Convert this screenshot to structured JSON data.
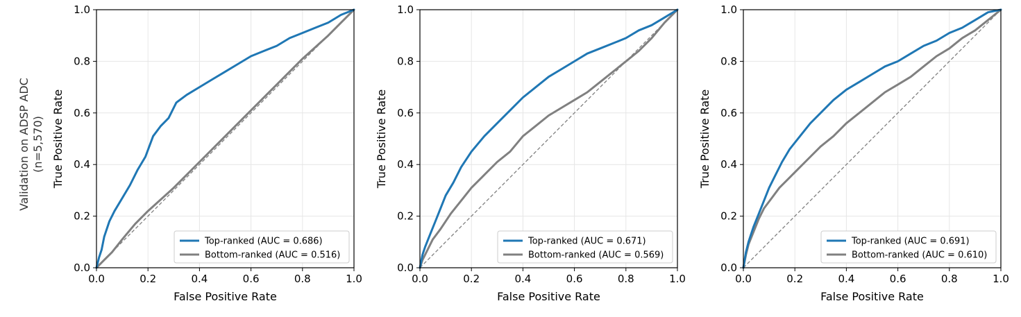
{
  "row_label": {
    "line1": "Validation on ADSP ADC",
    "line2": "(n=5,570)"
  },
  "colors": {
    "top": "#1f77b4",
    "bottom": "#808080",
    "diagonal": "#808080",
    "grid": "#e6e6e6"
  },
  "chart_data": [
    {
      "type": "line",
      "xlabel": "False Positive Rate",
      "ylabel": "True Positive Rate",
      "xlim": [
        0,
        1
      ],
      "ylim": [
        0,
        1
      ],
      "xticks": [
        "0.0",
        "0.2",
        "0.4",
        "0.6",
        "0.8",
        "1.0"
      ],
      "yticks": [
        "0.0",
        "0.2",
        "0.4",
        "0.6",
        "0.8",
        "1.0"
      ],
      "grid": true,
      "legend_position": "bottom-right",
      "diagonal": true,
      "series": [
        {
          "name": "Top-ranked (AUC = 0.686)",
          "color_key": "top",
          "x": [
            0,
            0.01,
            0.02,
            0.03,
            0.05,
            0.07,
            0.1,
            0.13,
            0.16,
            0.19,
            0.22,
            0.25,
            0.28,
            0.31,
            0.35,
            0.4,
            0.45,
            0.5,
            0.55,
            0.6,
            0.65,
            0.7,
            0.75,
            0.8,
            0.85,
            0.9,
            0.95,
            1.0
          ],
          "y": [
            0,
            0.04,
            0.07,
            0.12,
            0.18,
            0.22,
            0.27,
            0.32,
            0.38,
            0.43,
            0.51,
            0.55,
            0.58,
            0.64,
            0.67,
            0.7,
            0.73,
            0.76,
            0.79,
            0.82,
            0.84,
            0.86,
            0.89,
            0.91,
            0.93,
            0.95,
            0.98,
            1.0
          ]
        },
        {
          "name": "Bottom-ranked (AUC = 0.516)",
          "color_key": "bottom",
          "x": [
            0,
            0.03,
            0.06,
            0.1,
            0.15,
            0.2,
            0.3,
            0.4,
            0.5,
            0.6,
            0.7,
            0.8,
            0.9,
            0.95,
            1.0
          ],
          "y": [
            0,
            0.03,
            0.06,
            0.11,
            0.17,
            0.22,
            0.31,
            0.41,
            0.51,
            0.61,
            0.71,
            0.81,
            0.9,
            0.95,
            1.0
          ]
        }
      ]
    },
    {
      "type": "line",
      "xlabel": "False Positive Rate",
      "ylabel": "True Positive Rate",
      "xlim": [
        0,
        1
      ],
      "ylim": [
        0,
        1
      ],
      "xticks": [
        "0.0",
        "0.2",
        "0.4",
        "0.6",
        "0.8",
        "1.0"
      ],
      "yticks": [
        "0.0",
        "0.2",
        "0.4",
        "0.6",
        "0.8",
        "1.0"
      ],
      "grid": true,
      "legend_position": "bottom-right",
      "diagonal": true,
      "series": [
        {
          "name": "Top-ranked (AUC = 0.671)",
          "color_key": "top",
          "x": [
            0,
            0.01,
            0.02,
            0.04,
            0.06,
            0.08,
            0.1,
            0.13,
            0.16,
            0.2,
            0.25,
            0.3,
            0.35,
            0.4,
            0.45,
            0.5,
            0.55,
            0.6,
            0.65,
            0.7,
            0.75,
            0.8,
            0.85,
            0.9,
            0.95,
            1.0
          ],
          "y": [
            0,
            0.05,
            0.08,
            0.13,
            0.18,
            0.23,
            0.28,
            0.33,
            0.39,
            0.45,
            0.51,
            0.56,
            0.61,
            0.66,
            0.7,
            0.74,
            0.77,
            0.8,
            0.83,
            0.85,
            0.87,
            0.89,
            0.92,
            0.94,
            0.97,
            1.0
          ]
        },
        {
          "name": "Bottom-ranked (AUC = 0.569)",
          "color_key": "bottom",
          "x": [
            0,
            0.01,
            0.03,
            0.05,
            0.08,
            0.12,
            0.16,
            0.2,
            0.25,
            0.3,
            0.35,
            0.4,
            0.45,
            0.5,
            0.55,
            0.6,
            0.65,
            0.7,
            0.75,
            0.8,
            0.85,
            0.9,
            0.95,
            1.0
          ],
          "y": [
            0,
            0.03,
            0.07,
            0.11,
            0.15,
            0.21,
            0.26,
            0.31,
            0.36,
            0.41,
            0.45,
            0.51,
            0.55,
            0.59,
            0.62,
            0.65,
            0.68,
            0.72,
            0.76,
            0.8,
            0.84,
            0.89,
            0.95,
            1.0
          ]
        }
      ]
    },
    {
      "type": "line",
      "xlabel": "False Positive Rate",
      "ylabel": "True Positive Rate",
      "xlim": [
        0,
        1
      ],
      "ylim": [
        0,
        1
      ],
      "xticks": [
        "0.0",
        "0.2",
        "0.4",
        "0.6",
        "0.8",
        "1.0"
      ],
      "yticks": [
        "0.0",
        "0.2",
        "0.4",
        "0.6",
        "0.8",
        "1.0"
      ],
      "grid": true,
      "legend_position": "bottom-right",
      "diagonal": true,
      "series": [
        {
          "name": "Top-ranked (AUC = 0.691)",
          "color_key": "top",
          "x": [
            0,
            0.01,
            0.02,
            0.04,
            0.06,
            0.08,
            0.1,
            0.12,
            0.15,
            0.18,
            0.22,
            0.26,
            0.3,
            0.35,
            0.4,
            0.45,
            0.5,
            0.55,
            0.6,
            0.65,
            0.7,
            0.75,
            0.8,
            0.85,
            0.9,
            0.95,
            1.0
          ],
          "y": [
            0,
            0.06,
            0.1,
            0.16,
            0.21,
            0.26,
            0.31,
            0.35,
            0.41,
            0.46,
            0.51,
            0.56,
            0.6,
            0.65,
            0.69,
            0.72,
            0.75,
            0.78,
            0.8,
            0.83,
            0.86,
            0.88,
            0.91,
            0.93,
            0.96,
            0.99,
            1.0
          ]
        },
        {
          "name": "Bottom-ranked (AUC = 0.610)",
          "color_key": "bottom",
          "x": [
            0,
            0.01,
            0.02,
            0.04,
            0.06,
            0.08,
            0.11,
            0.14,
            0.18,
            0.22,
            0.26,
            0.3,
            0.35,
            0.4,
            0.45,
            0.5,
            0.55,
            0.6,
            0.65,
            0.7,
            0.75,
            0.8,
            0.85,
            0.9,
            0.95,
            1.0
          ],
          "y": [
            0,
            0.05,
            0.09,
            0.14,
            0.19,
            0.23,
            0.27,
            0.31,
            0.35,
            0.39,
            0.43,
            0.47,
            0.51,
            0.56,
            0.6,
            0.64,
            0.68,
            0.71,
            0.74,
            0.78,
            0.82,
            0.85,
            0.89,
            0.92,
            0.96,
            1.0
          ]
        }
      ]
    }
  ]
}
